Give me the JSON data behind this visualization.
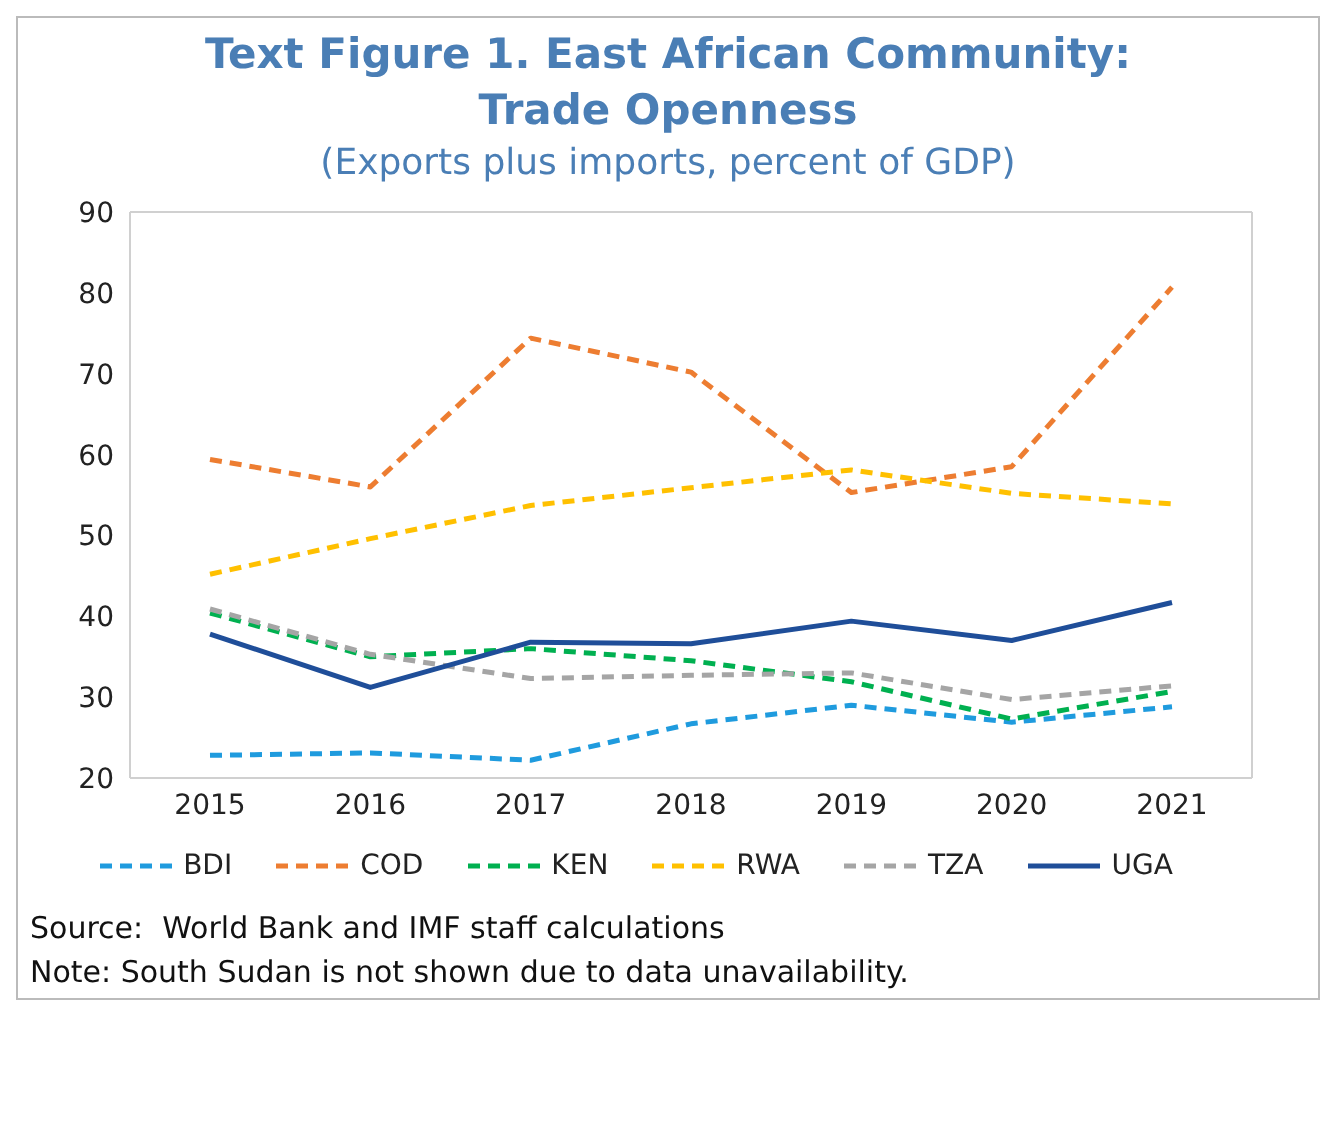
{
  "chart_data": {
    "type": "line",
    "title": "Text Figure 1. East African Community: Trade Openness",
    "subtitle": "(Exports plus imports, percent of GDP)",
    "categories": [
      "2015",
      "2016",
      "2017",
      "2018",
      "2019",
      "2020",
      "2021"
    ],
    "series": [
      {
        "name": "BDI",
        "color": "#1f9bde",
        "line_style": "dashed",
        "values": [
          22.8,
          23.1,
          22.2,
          26.7,
          29.0,
          26.9,
          28.8
        ]
      },
      {
        "name": "COD",
        "color": "#ed7d31",
        "line_style": "dashed",
        "values": [
          59.4,
          56.0,
          74.4,
          70.2,
          55.3,
          58.5,
          80.7
        ]
      },
      {
        "name": "KEN",
        "color": "#00b050",
        "line_style": "dashed",
        "values": [
          40.4,
          35.0,
          36.0,
          34.5,
          31.9,
          27.3,
          30.7
        ]
      },
      {
        "name": "RWA",
        "color": "#ffc000",
        "line_style": "dashed",
        "values": [
          45.2,
          49.6,
          53.7,
          55.9,
          58.1,
          55.2,
          53.9
        ]
      },
      {
        "name": "TZA",
        "color": "#a5a5a5",
        "line_style": "dashed",
        "values": [
          40.9,
          35.3,
          32.3,
          32.7,
          33.0,
          29.7,
          31.4
        ]
      },
      {
        "name": "UGA",
        "color": "#1f4e99",
        "line_style": "solid",
        "values": [
          37.8,
          31.2,
          36.8,
          36.6,
          39.4,
          37.0,
          41.7
        ]
      }
    ],
    "ylim": [
      20,
      90
    ],
    "yticks": [
      20,
      30,
      40,
      50,
      60,
      70,
      80,
      90
    ],
    "grid": false,
    "legend": "bottom",
    "marker": "none",
    "annotations": [
      "Source:  World Bank and IMF staff calculations",
      "Note: South Sudan is not shown due to data unavailability."
    ]
  }
}
